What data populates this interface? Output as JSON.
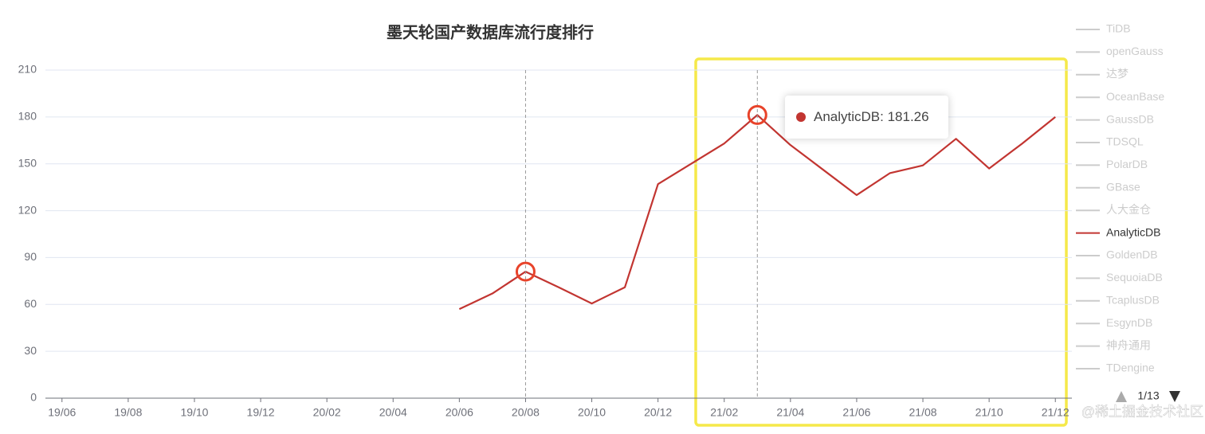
{
  "chart_data": {
    "type": "line",
    "title": "墨天轮国产数据库流行度排行",
    "categories": [
      "19/06",
      null,
      "19/08",
      null,
      "19/10",
      null,
      "19/12",
      null,
      "20/02",
      null,
      "20/04",
      null,
      "20/06",
      null,
      "20/08",
      null,
      "20/10",
      null,
      "20/12",
      null,
      "21/02",
      null,
      "21/04",
      null,
      "21/06",
      null,
      "21/08",
      null,
      "21/10",
      null,
      "21/12"
    ],
    "series": [
      {
        "name": "AnalyticDB",
        "color": "#c23531",
        "values": [
          null,
          null,
          null,
          null,
          null,
          null,
          null,
          null,
          null,
          null,
          null,
          null,
          57,
          67,
          81,
          71,
          60.6,
          71,
          137,
          150,
          163,
          181.26,
          162,
          146,
          130,
          144,
          149,
          166,
          147,
          163,
          180
        ]
      }
    ],
    "ylim": [
      0,
      210
    ],
    "yticks": [
      0,
      30,
      60,
      90,
      120,
      150,
      180,
      210
    ],
    "grid": true,
    "legend": {
      "position": "right",
      "inactive_color": "#cccccc",
      "items": [
        "TiDB",
        "openGauss",
        "达梦",
        "OceanBase",
        "GaussDB",
        "TDSQL",
        "PolarDB",
        "GBase",
        "人大金仓",
        "AnalyticDB",
        "GoldenDB",
        "SequoiaDB",
        "TcaplusDB",
        "EsgynDB",
        "神舟通用",
        "TDengine"
      ],
      "page": "1/13"
    },
    "tooltip": {
      "text": "AnalyticDB: 181.26"
    },
    "watermark": "@稀土掘金技术社区"
  }
}
